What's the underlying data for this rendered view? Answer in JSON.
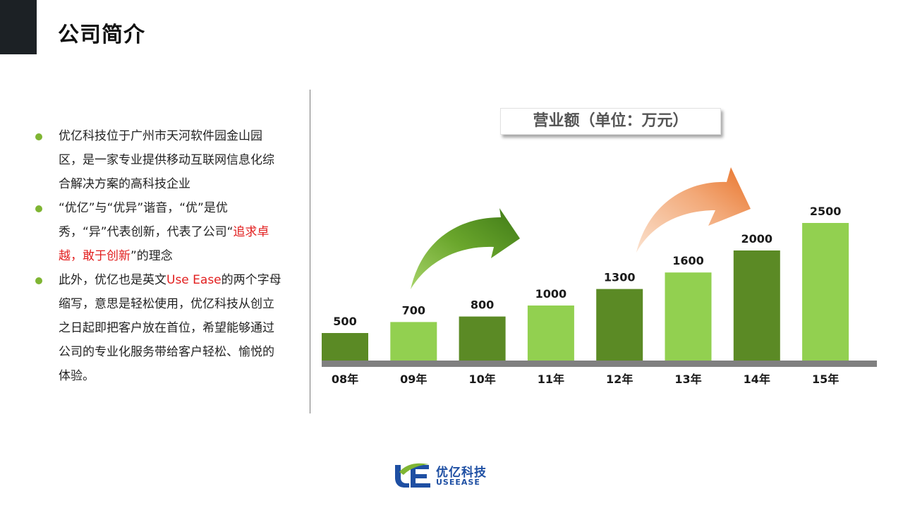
{
  "header": {
    "title": "公司简介"
  },
  "bullets": [
    {
      "parts": [
        {
          "text": "优亿科技位于广州市天河软件园金山园区，是一家专业提供移动互联网信息化综合解决方案的高科技企业"
        }
      ]
    },
    {
      "parts": [
        {
          "text": " “优亿”与“优异”谐音，“优”是优秀，“异”代表创新，代表了公司“"
        },
        {
          "text": "追求卓越，敢于创新",
          "highlight": true
        },
        {
          "text": "”的理念"
        }
      ]
    },
    {
      "parts": [
        {
          "text": "此外，优亿也是英文"
        },
        {
          "text": "Use Ease",
          "highlight": true
        },
        {
          "text": "的两个字母缩写，意思是轻松使用，优亿科技从创立之日起即把客户放在首位，希望能够通过公司的专业化服务带给客户轻松、愉悦的体验。"
        }
      ]
    }
  ],
  "chart_data": {
    "type": "bar",
    "title": "营业额（单位：万元）",
    "categories": [
      "08年",
      "09年",
      "10年",
      "11年",
      "12年",
      "13年",
      "14年",
      "15年"
    ],
    "values": [
      500,
      700,
      800,
      1000,
      1300,
      1600,
      2000,
      2500
    ],
    "value_labels": [
      "500",
      "700",
      "800",
      "1000",
      "1300",
      "1600",
      "2000",
      "2500"
    ],
    "colors": {
      "dark_bar": "#5b8a25",
      "light_bar": "#92d050",
      "baseline": "#808080",
      "highlight_label": "#c00000",
      "arrow_green": "#4b8a1e",
      "arrow_orange": "#ea7c32"
    }
  },
  "logo": {
    "name": "优亿科技",
    "name_en": "USEEASE"
  }
}
